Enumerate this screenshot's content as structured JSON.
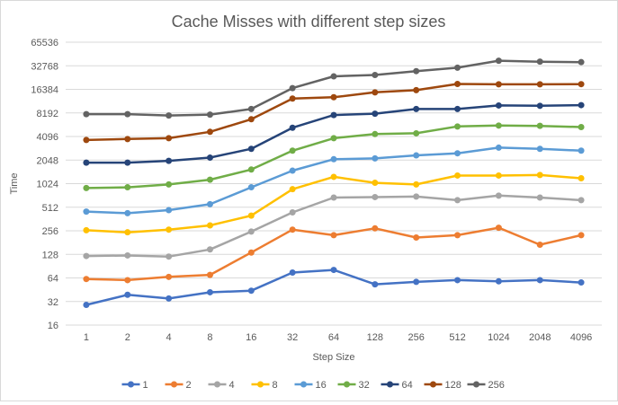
{
  "chart_data": {
    "type": "line",
    "title": "Cache Misses with different step sizes",
    "xlabel": "Step Size",
    "ylabel": "Time",
    "y_scale": "log2",
    "ylim": [
      16,
      65536
    ],
    "y_ticks": [
      "16",
      "32",
      "64",
      "128",
      "256",
      "512",
      "1024",
      "2048",
      "4096",
      "8192",
      "16384",
      "32768",
      "65536"
    ],
    "categories": [
      "1",
      "2",
      "4",
      "8",
      "16",
      "32",
      "64",
      "128",
      "256",
      "512",
      "1024",
      "2048",
      "4096"
    ],
    "grid": true,
    "legend_position": "bottom",
    "series": [
      {
        "name": "1",
        "color": "#4472C4",
        "values": [
          29,
          39,
          35,
          42,
          44,
          75,
          81,
          53,
          57,
          60,
          58,
          60,
          56
        ]
      },
      {
        "name": "2",
        "color": "#ED7D31",
        "values": [
          62,
          60,
          66,
          70,
          135,
          265,
          225,
          275,
          210,
          225,
          280,
          170,
          225
        ]
      },
      {
        "name": "4",
        "color": "#A5A5A5",
        "values": [
          122,
          124,
          120,
          148,
          250,
          440,
          680,
          690,
          700,
          630,
          720,
          680,
          630
        ]
      },
      {
        "name": "8",
        "color": "#FFC000",
        "values": [
          260,
          245,
          265,
          300,
          400,
          870,
          1250,
          1050,
          1000,
          1300,
          1300,
          1320,
          1200
        ]
      },
      {
        "name": "16",
        "color": "#5B9BD5",
        "values": [
          450,
          430,
          470,
          560,
          920,
          1500,
          2100,
          2150,
          2350,
          2500,
          2950,
          2850,
          2700
        ]
      },
      {
        "name": "32",
        "color": "#70AD47",
        "values": [
          900,
          920,
          1000,
          1150,
          1550,
          2700,
          3900,
          4400,
          4500,
          5500,
          5650,
          5600,
          5400
        ]
      },
      {
        "name": "64",
        "color": "#264478",
        "values": [
          1900,
          1900,
          2000,
          2200,
          2850,
          5300,
          7700,
          8000,
          9200,
          9200,
          10200,
          10100,
          10300
        ]
      },
      {
        "name": "128",
        "color": "#9E480E",
        "values": [
          3700,
          3800,
          3900,
          4700,
          6800,
          12500,
          13000,
          15000,
          16000,
          19200,
          19000,
          19000,
          19100
        ]
      },
      {
        "name": "256",
        "color": "#636363",
        "values": [
          7900,
          7900,
          7600,
          7800,
          9200,
          17000,
          24000,
          25000,
          28000,
          31000,
          38000,
          37000,
          36500
        ]
      }
    ]
  }
}
